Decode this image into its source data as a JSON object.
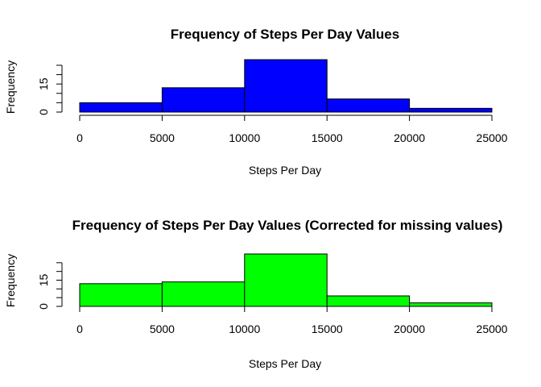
{
  "chart_data": [
    {
      "type": "bar",
      "title": "Frequency of Steps Per Day Values",
      "xlabel": "Steps Per Day",
      "ylabel": "Frequency",
      "bin_edges": [
        0,
        5000,
        10000,
        15000,
        20000,
        25000
      ],
      "values": [
        5,
        13,
        28,
        7,
        2
      ],
      "xlim": [
        0,
        25000
      ],
      "x_ticks": [
        0,
        5000,
        10000,
        15000,
        20000,
        25000
      ],
      "x_tick_labels": [
        "0",
        "5000",
        "10000",
        "15000",
        "20000",
        "25000"
      ],
      "y_ticks": [
        0,
        15
      ],
      "y_tick_labels": [
        "0",
        "15"
      ],
      "y_axis_max": 25,
      "ylim": [
        0,
        28
      ],
      "bar_color": "#0000FF",
      "grid": false
    },
    {
      "type": "bar",
      "title": "Frequency of Steps Per Day Values (Corrected for missing values)",
      "xlabel": "Steps Per Day",
      "ylabel": "Frequency",
      "bin_edges": [
        0,
        5000,
        10000,
        15000,
        20000,
        25000
      ],
      "values": [
        13,
        14,
        30,
        6,
        2
      ],
      "xlim": [
        0,
        25000
      ],
      "x_ticks": [
        0,
        5000,
        10000,
        15000,
        20000,
        25000
      ],
      "x_tick_labels": [
        "0",
        "5000",
        "10000",
        "15000",
        "20000",
        "25000"
      ],
      "y_ticks": [
        0,
        15
      ],
      "y_tick_labels": [
        "0",
        "15"
      ],
      "y_axis_max": 25,
      "ylim": [
        0,
        30
      ],
      "bar_color": "#00FF00",
      "grid": false
    }
  ]
}
